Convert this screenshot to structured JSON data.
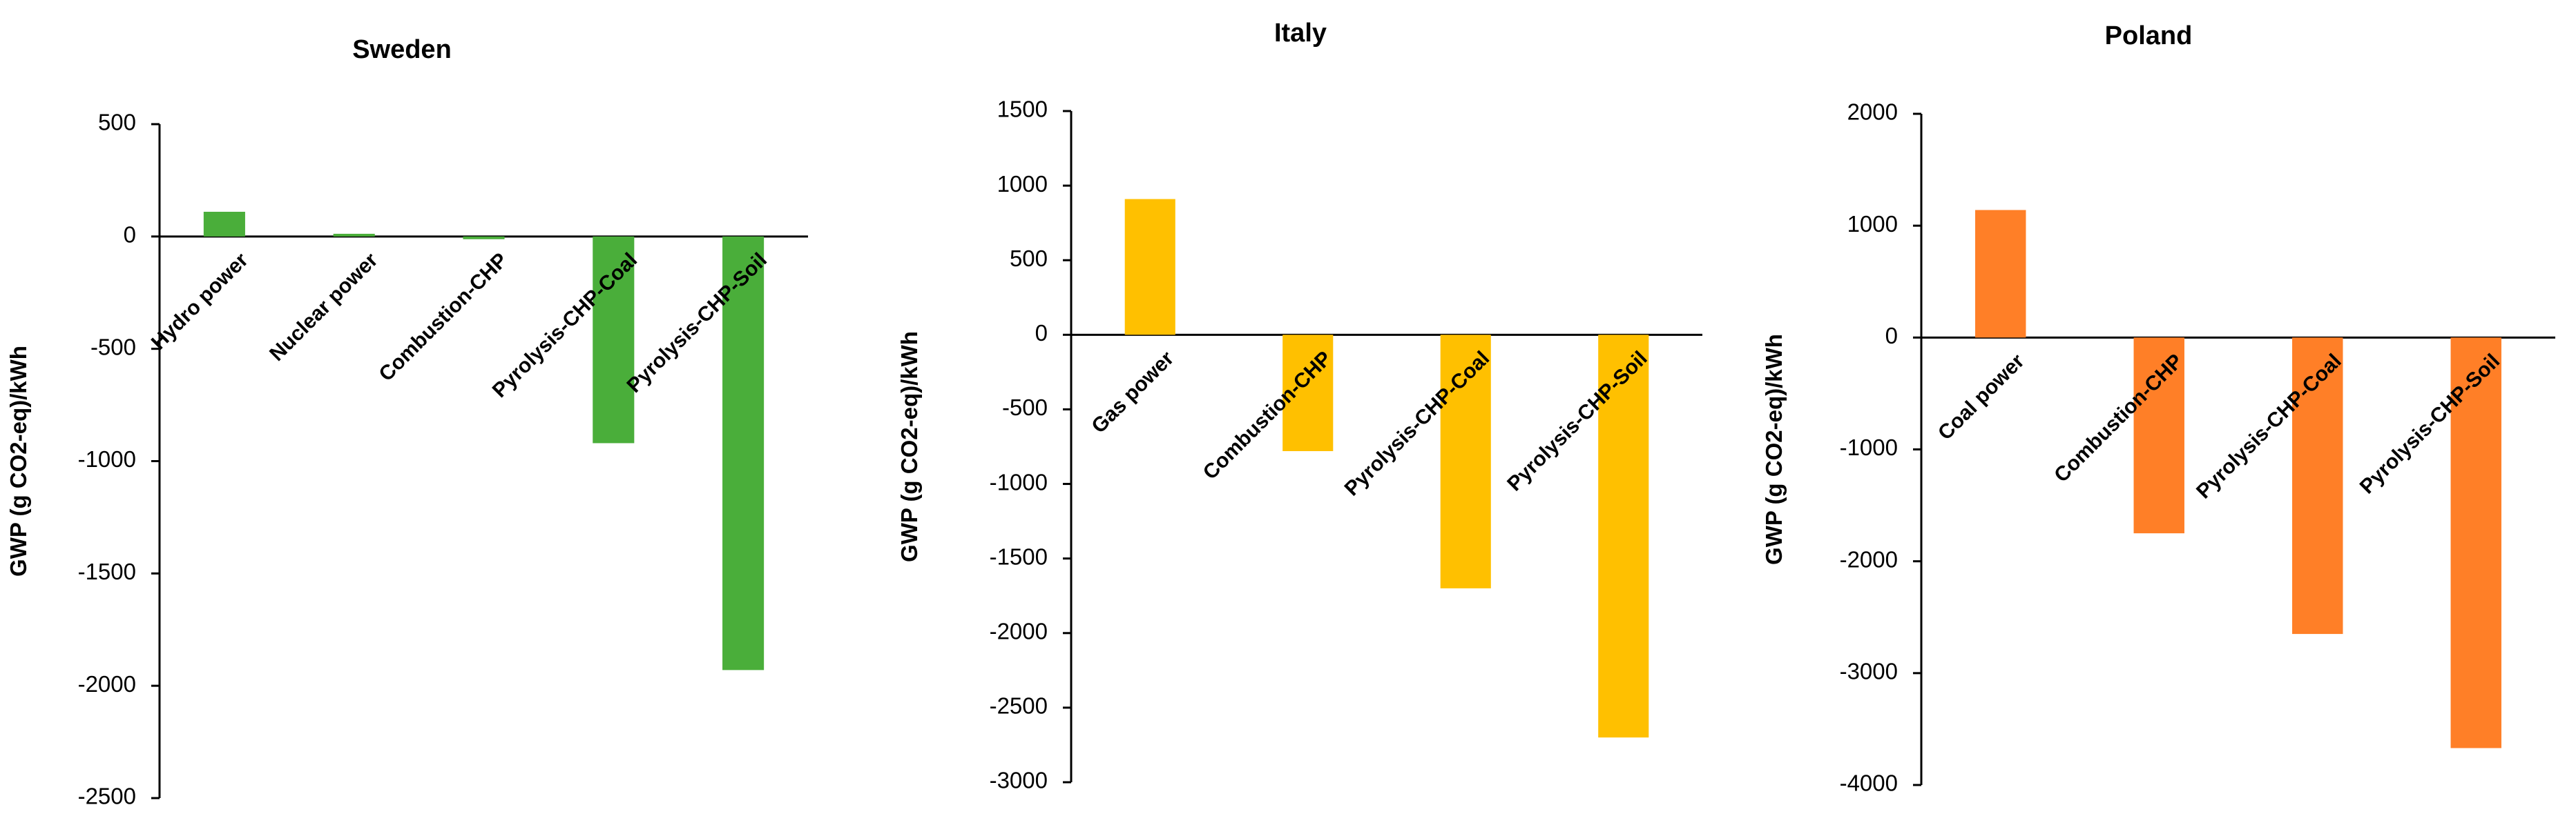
{
  "chart_data": [
    {
      "type": "bar",
      "title": "Sweden",
      "ylabel": "GWP (g CO2-eq)/kWh",
      "ylim": [
        -2500,
        500
      ],
      "yticks": [
        500,
        0,
        -500,
        -1000,
        -1500,
        -2000,
        -2500
      ],
      "categories": [
        "Hydro power",
        "Nuclear power",
        "Combustion-CHP",
        "Pyrolysis-CHP-Coal",
        "Pyrolysis-CHP-Soil"
      ],
      "values": [
        110,
        12,
        -12,
        -920,
        -1930
      ],
      "color": "#4aae3a",
      "grid": false
    },
    {
      "type": "bar",
      "title": "Italy",
      "ylabel": "GWP (g CO2-eq)/kWh",
      "ylim": [
        -3000,
        1500
      ],
      "yticks": [
        1500,
        1000,
        500,
        0,
        -500,
        -1000,
        -1500,
        -2000,
        -2500,
        -3000
      ],
      "categories": [
        "Gas power",
        "Combustion-CHP",
        "Pyrolysis-CHP-Coal",
        "Pyrolysis-CHP-Soil"
      ],
      "values": [
        910,
        -780,
        -1700,
        -2700
      ],
      "color": "#ffc000",
      "grid": false
    },
    {
      "type": "bar",
      "title": "Poland",
      "ylabel": "GWP (g CO2-eq)/kWh",
      "ylim": [
        -4000,
        2000
      ],
      "yticks": [
        2000,
        1000,
        0,
        -1000,
        -2000,
        -3000,
        -4000
      ],
      "categories": [
        "Coal power",
        "Combustion-CHP",
        "Pyrolysis-CHP-Coal",
        "Pyrolysis-CHP-Soil"
      ],
      "values": [
        1140,
        -1750,
        -2650,
        -3670
      ],
      "color": "#ff7f27",
      "grid": false
    }
  ]
}
